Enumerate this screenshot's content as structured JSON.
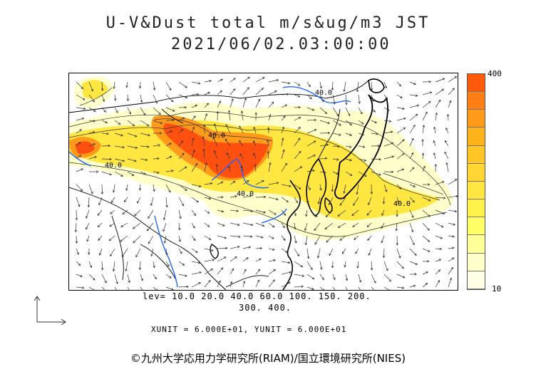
{
  "title": {
    "line1": "U-V&Dust total m/s&ug/m3 JST",
    "line2": "2021/06/02.03:00:00"
  },
  "colorbar": {
    "max_label": "400",
    "min_label": "10",
    "colors": [
      "#ffffe6",
      "#ffffcc",
      "#ffff99",
      "#ffff66",
      "#fff24d",
      "#ffe640",
      "#ffd633",
      "#ffc626",
      "#ffb31a",
      "#ff9a1a",
      "#ff7f14",
      "#ff5a0a"
    ]
  },
  "contour_labels": [
    "40.0",
    "40.0",
    "40.0",
    "40.0",
    "40.0"
  ],
  "levels": {
    "line1": "lev= 10.0 20.0 40.0 60.0 100. 150. 200.",
    "line2": "300. 400."
  },
  "units": "XUNIT = 6.000E+01, YUNIT = 6.000E+01",
  "credit": "©九州大学応用力学研究所(RIAM)/国立環境研究所(NIES)",
  "colors": {
    "coast": "#000000",
    "border": "#000000",
    "river": "#1e64ff",
    "dust_low": "#ffffcc",
    "dust_mid": "#ffe640",
    "dust_high": "#ff8c1a",
    "dust_max": "#ff5010"
  }
}
